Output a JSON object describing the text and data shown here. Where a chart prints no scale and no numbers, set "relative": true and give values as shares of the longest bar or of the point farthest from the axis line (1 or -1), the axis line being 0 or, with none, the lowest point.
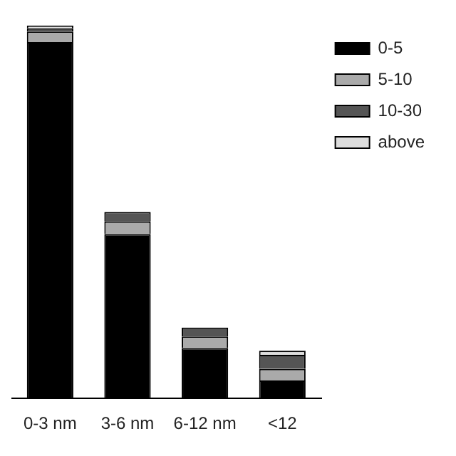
{
  "chart_data": {
    "type": "bar",
    "relative": true,
    "stacked": true,
    "categories": [
      "0-3 nm",
      "3-6 nm",
      "6-12 nm",
      "<12"
    ],
    "series": [
      {
        "name": "0-5",
        "color": "#000000",
        "values": [
          0.956,
          0.441,
          0.135,
          0.048
        ]
      },
      {
        "name": "5-10",
        "color": "#aaaaaa",
        "values": [
          0.028,
          0.034,
          0.031,
          0.031
        ]
      },
      {
        "name": "10-30",
        "color": "#555555",
        "values": [
          0.009,
          0.025,
          0.024,
          0.038
        ]
      },
      {
        "name": "above",
        "color": "#dddddd",
        "values": [
          0.007,
          0,
          0,
          0.011
        ]
      }
    ],
    "legend": "top right",
    "grid": false,
    "tick_labels": "x"
  }
}
